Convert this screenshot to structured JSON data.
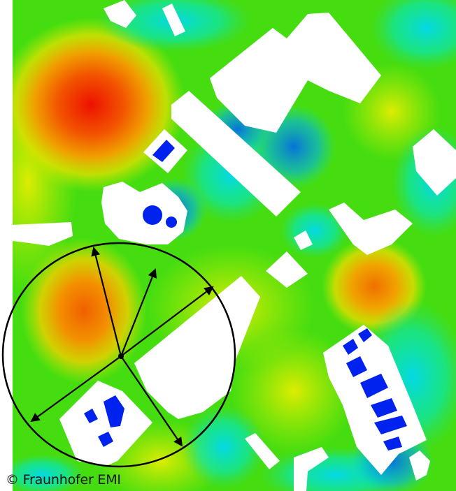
{
  "credit": {
    "text": "© Fraunhofer EMI"
  },
  "colors": {
    "background": "#ffffff",
    "building": "#ffffff",
    "courtyard": "#0022ee",
    "field_low": "#00e8e8",
    "field_mid": "#33dd00",
    "field_high": "#eeee00",
    "field_peak": "#ee1100",
    "overlay": "#000000"
  },
  "legend": {
    "scale_name": "heat-map",
    "direction": "blue-cyan-green-yellow-red"
  },
  "overlay": {
    "shape": "circle-with-radial-arrows",
    "arrow_count": 5
  }
}
